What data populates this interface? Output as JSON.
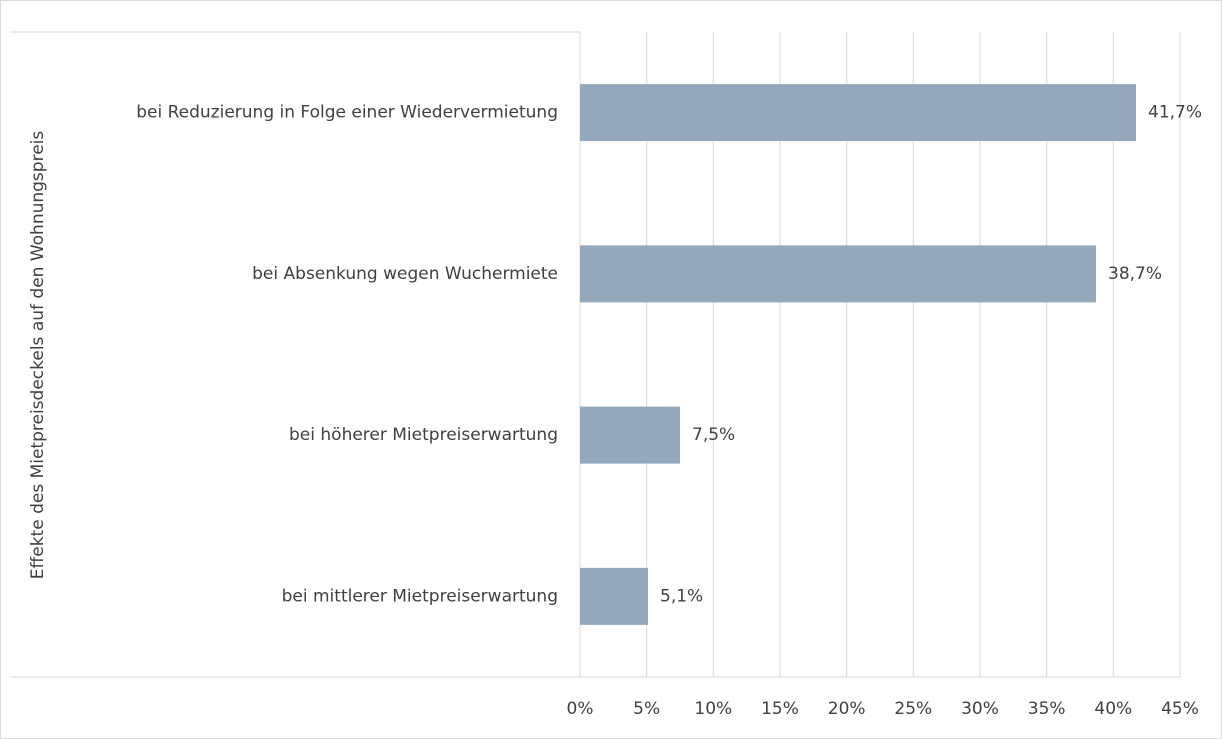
{
  "chart_data": {
    "type": "bar",
    "orientation": "horizontal",
    "y_axis_label": "Effekte des Mietpreisdeckels auf den Wohnungspreis",
    "categories": [
      "bei Reduzierung in Folge einer Wiedervermietung",
      "bei Absenkung wegen Wuchermiete",
      "bei höherer Mietpreiserwartung",
      "bei mittlerer Mietpreiserwartung"
    ],
    "values": [
      41.7,
      38.7,
      7.5,
      5.1
    ],
    "value_labels": [
      "41,7%",
      "38,7%",
      "7,5%",
      "5,1%"
    ],
    "color": "#94a8bb",
    "xlim": [
      0,
      45
    ],
    "xticks": [
      {
        "value": 0,
        "label": "0%"
      },
      {
        "value": 5,
        "label": "5%"
      },
      {
        "value": 10,
        "label": "10%"
      },
      {
        "value": 15,
        "label": "15%"
      },
      {
        "value": 20,
        "label": "20%"
      },
      {
        "value": 25,
        "label": "25%"
      },
      {
        "value": 30,
        "label": "30%"
      },
      {
        "value": 35,
        "label": "35%"
      },
      {
        "value": 40,
        "label": "40%"
      },
      {
        "value": 45,
        "label": "45%"
      }
    ],
    "grid": true
  }
}
